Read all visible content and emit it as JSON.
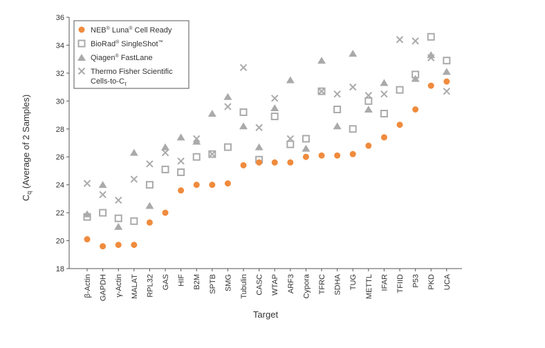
{
  "chart_data": {
    "type": "scatter",
    "xlabel": "Target",
    "ylabel_main": "C",
    "ylabel_sub": "q",
    "ylabel_rest": " (Average of 2 Samples)",
    "ylim": [
      18,
      36
    ],
    "yticks": [
      18,
      20,
      22,
      24,
      26,
      28,
      30,
      32,
      34,
      36
    ],
    "ytick_labels": [
      "18",
      "20",
      "22",
      "24",
      "26",
      "28",
      "30",
      "32",
      "34",
      "36"
    ],
    "categories": [
      "β-Actin",
      "GAPDH",
      "γ-Actin",
      "MALAT",
      "RPL32",
      "GAS",
      "HIF",
      "B2M",
      "SPTB",
      "SMG",
      "Tubulin",
      "CASC",
      "WTAP",
      "ARF3",
      "Cypora",
      "TFRC",
      "SDHA",
      "TUG",
      "METTL",
      "IFAR",
      "TFIID",
      "P53",
      "PKD",
      "UCA"
    ],
    "series": [
      {
        "name": "NEB® Luna® Cell Ready",
        "name_main": "NEB",
        "name_reg1": "®",
        "name_mid": " Luna",
        "name_reg2": "®",
        "name_end": " Cell Ready",
        "marker": "circle",
        "color": "#f08a3c",
        "values": [
          20.1,
          19.6,
          19.7,
          19.7,
          21.3,
          22.0,
          23.6,
          24.0,
          24.0,
          24.1,
          25.4,
          25.6,
          25.6,
          25.6,
          26.0,
          26.1,
          26.1,
          26.2,
          26.8,
          27.4,
          28.3,
          29.4,
          31.1,
          31.4
        ]
      },
      {
        "name": "BioRad® SingleShot™",
        "name_main": "BioRad",
        "name_reg1": "®",
        "name_mid": " SingleShot",
        "name_reg2": "™",
        "name_end": "",
        "marker": "square",
        "color": "#aaaaaa",
        "values": [
          21.7,
          22.0,
          21.6,
          21.4,
          24.0,
          25.1,
          24.9,
          26.0,
          26.2,
          26.7,
          29.2,
          25.8,
          28.9,
          26.9,
          27.3,
          30.7,
          29.4,
          28.0,
          30.0,
          29.1,
          30.8,
          31.9,
          34.6,
          32.9
        ]
      },
      {
        "name": "Qiagen® FastLane",
        "name_main": "Qiagen",
        "name_reg1": "®",
        "name_mid": " FastLane",
        "name_reg2": "",
        "name_end": "",
        "marker": "triangle",
        "color": "#aaaaaa",
        "values": [
          21.9,
          24.0,
          21.0,
          26.3,
          22.5,
          26.7,
          27.4,
          27.1,
          29.1,
          30.3,
          28.2,
          26.7,
          29.5,
          31.5,
          26.6,
          32.9,
          28.2,
          33.4,
          29.4,
          31.3,
          null,
          31.6,
          33.3,
          32.1
        ]
      },
      {
        "name": "Thermo Fisher Scientific Cells-to-Cτ",
        "name_line1": "Thermo Fisher Scientific",
        "name_line2_main": "Cells-to-C",
        "name_line2_sub": "τ",
        "marker": "x",
        "color": "#aaaaaa",
        "values": [
          24.1,
          23.3,
          22.9,
          24.4,
          25.5,
          26.3,
          25.7,
          27.3,
          26.2,
          29.6,
          32.4,
          28.1,
          30.2,
          27.3,
          null,
          30.7,
          30.5,
          31.0,
          30.4,
          30.5,
          34.4,
          34.3,
          33.1,
          30.7
        ]
      }
    ]
  }
}
